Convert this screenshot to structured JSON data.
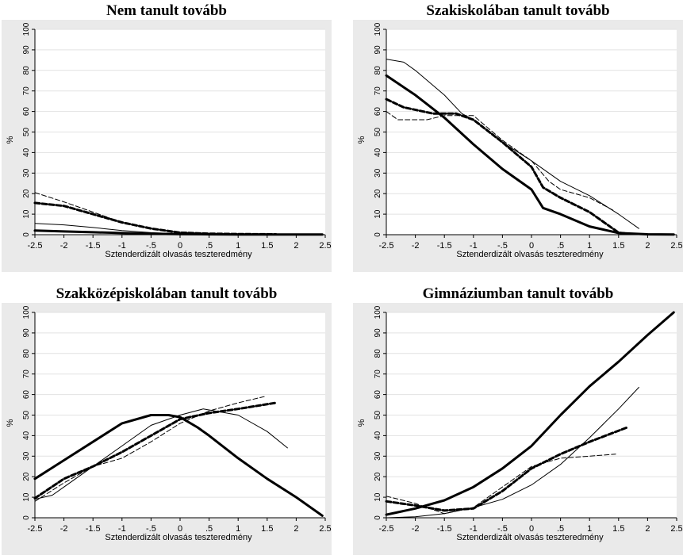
{
  "chart_data": [
    {
      "type": "line",
      "title": "Nem tanult tovább",
      "xlabel": "Sztenderdizált olvasás teszteredmény",
      "ylabel": "%",
      "xlim": [
        -2.5,
        2.5
      ],
      "ylim": [
        0,
        100
      ],
      "xticks": [
        "-2.5",
        "-2",
        "-1.5",
        "-1",
        "-.5",
        "0",
        ".5",
        "1",
        "1.5",
        "2",
        "2.5"
      ],
      "yticks": [
        "0",
        "10",
        "20",
        "30",
        "40",
        "50",
        "60",
        "70",
        "80",
        "90",
        "100"
      ],
      "grid": true,
      "series": [
        {
          "style": "thick-solid",
          "x": [
            -2.5,
            -2,
            -1.5,
            -1,
            -0.5,
            0,
            0.5,
            1,
            1.5,
            2,
            2.45
          ],
          "y": [
            2,
            1.6,
            1.2,
            0.8,
            0.5,
            0.3,
            0.2,
            0.1,
            0.1,
            0.1,
            0.1
          ]
        },
        {
          "style": "thin-solid",
          "x": [
            -2.5,
            -2,
            -1.5,
            -1,
            -0.5,
            0,
            0.3
          ],
          "y": [
            5.5,
            4.8,
            3.5,
            2,
            1,
            0.4,
            0.2
          ]
        },
        {
          "style": "thick-dashed",
          "x": [
            -2.5,
            -2,
            -1.5,
            -1,
            -0.5,
            0,
            0.5,
            1,
            1.65
          ],
          "y": [
            15.5,
            14,
            10,
            6,
            3,
            1,
            0.5,
            0.3,
            0.2
          ]
        },
        {
          "style": "thin-dashed",
          "x": [
            -2.5,
            -2,
            -1.5,
            -1,
            -0.5,
            0,
            0.5,
            1.45
          ],
          "y": [
            20.5,
            16,
            11,
            6,
            3,
            1.2,
            0.5,
            0.2
          ]
        }
      ]
    },
    {
      "type": "line",
      "title": "Szakiskolában tanult tovább",
      "xlabel": "Sztenderdizált olvasás teszteredmény",
      "ylabel": "%",
      "xlim": [
        -2.5,
        2.5
      ],
      "ylim": [
        0,
        100
      ],
      "xticks": [
        "-2.5",
        "-2",
        "-1.5",
        "-1",
        "-.5",
        "0",
        ".5",
        "1",
        "1.5",
        "2",
        "2.5"
      ],
      "yticks": [
        "0",
        "10",
        "20",
        "30",
        "40",
        "50",
        "60",
        "70",
        "80",
        "90",
        "100"
      ],
      "grid": true,
      "series": [
        {
          "style": "thick-solid",
          "x": [
            -2.5,
            -2,
            -1.5,
            -1,
            -0.5,
            0,
            0.2,
            0.5,
            1,
            1.5,
            2,
            2.45
          ],
          "y": [
            77.5,
            68,
            57,
            44,
            32,
            22,
            13,
            10,
            4,
            0.8,
            0.2,
            0.1
          ]
        },
        {
          "style": "thin-solid",
          "x": [
            -2.5,
            -2.2,
            -2,
            -1.5,
            -1.2,
            -1,
            -0.5,
            0,
            0.5,
            1,
            1.5,
            1.85
          ],
          "y": [
            85.5,
            84,
            80,
            68,
            59,
            56,
            45,
            36,
            26,
            19,
            10,
            3
          ]
        },
        {
          "style": "thick-dashed",
          "x": [
            -2.5,
            -2.2,
            -1.7,
            -1.3,
            -1,
            -0.5,
            0,
            0.2,
            0.5,
            1,
            1.5,
            1.65
          ],
          "y": [
            66,
            62,
            59,
            59,
            56,
            45,
            33,
            23,
            18,
            11,
            1,
            0.5
          ]
        },
        {
          "style": "thin-dashed",
          "x": [
            -2.5,
            -2.3,
            -1.8,
            -1.5,
            -1,
            -0.5,
            0,
            0.3,
            0.5,
            1,
            1.4
          ],
          "y": [
            60,
            56,
            56,
            58,
            58,
            46,
            36,
            26,
            22,
            18,
            12
          ]
        }
      ]
    },
    {
      "type": "line",
      "title": "Szakközépiskolában tanult tovább",
      "xlabel": "Sztenderdizált olvasás teszteredmény",
      "ylabel": "%",
      "xlim": [
        -2.5,
        2.5
      ],
      "ylim": [
        0,
        100
      ],
      "xticks": [
        "-2.5",
        "-2",
        "-1.5",
        "-1",
        "-.5",
        "0",
        ".5",
        "1",
        "1.5",
        "2",
        "2.5"
      ],
      "yticks": [
        "0",
        "10",
        "20",
        "30",
        "40",
        "50",
        "60",
        "70",
        "80",
        "90",
        "100"
      ],
      "grid": true,
      "series": [
        {
          "style": "thick-solid",
          "x": [
            -2.5,
            -2,
            -1.5,
            -1,
            -0.5,
            -0.2,
            0,
            0.3,
            0.5,
            1,
            1.5,
            2,
            2.45
          ],
          "y": [
            19,
            28,
            37,
            46,
            50,
            50,
            49,
            44,
            40,
            29,
            19,
            10,
            1
          ]
        },
        {
          "style": "thin-solid",
          "x": [
            -2.5,
            -2.2,
            -2,
            -1.5,
            -1,
            -0.5,
            0,
            0.4,
            1,
            1.5,
            1.85
          ],
          "y": [
            9,
            11,
            15,
            25,
            35,
            45,
            50,
            53,
            50,
            42,
            34
          ]
        },
        {
          "style": "thick-dashed",
          "x": [
            -2.5,
            -2,
            -1.5,
            -1,
            -0.5,
            0,
            0.5,
            1,
            1.65
          ],
          "y": [
            9.5,
            19,
            25,
            32,
            40,
            48,
            51,
            53,
            56
          ]
        },
        {
          "style": "thin-dashed",
          "x": [
            -2.5,
            -2,
            -1.5,
            -1,
            -0.5,
            0,
            0.5,
            1,
            1.45
          ],
          "y": [
            8,
            17,
            25,
            29,
            37,
            46,
            52,
            56,
            59
          ]
        }
      ]
    },
    {
      "type": "line",
      "title": "Gimnáziumban tanult tovább",
      "xlabel": "Sztenderdizált olvasás teszteredmény",
      "ylabel": "%",
      "xlim": [
        -2.5,
        2.5
      ],
      "ylim": [
        0,
        100
      ],
      "xticks": [
        "-2.5",
        "-2",
        "-1.5",
        "-1",
        "-.5",
        "0",
        ".5",
        "1",
        "1.5",
        "2",
        "2.5"
      ],
      "yticks": [
        "0",
        "10",
        "20",
        "30",
        "40",
        "50",
        "60",
        "70",
        "80",
        "90",
        "100"
      ],
      "grid": true,
      "series": [
        {
          "style": "thick-solid",
          "x": [
            -2.5,
            -2,
            -1.5,
            -1,
            -0.5,
            0,
            0.5,
            1,
            1.5,
            2,
            2.45
          ],
          "y": [
            1.5,
            4.5,
            8.5,
            15,
            24,
            35,
            50,
            64,
            76,
            89,
            100
          ]
        },
        {
          "style": "thin-solid",
          "x": [
            -2.5,
            -2,
            -1.5,
            -1,
            -0.5,
            0,
            0.5,
            1,
            1.5,
            1.85
          ],
          "y": [
            0,
            0.5,
            2,
            5,
            9,
            16,
            26,
            39,
            53,
            63.5
          ]
        },
        {
          "style": "thick-dashed",
          "x": [
            -2.5,
            -2,
            -1.5,
            -1,
            -0.5,
            0,
            0.5,
            1,
            1.65
          ],
          "y": [
            8,
            6,
            3.5,
            4.5,
            13,
            24,
            31,
            37,
            44
          ]
        },
        {
          "style": "thin-dashed",
          "x": [
            -2.5,
            -2,
            -1.5,
            -1,
            -0.5,
            0,
            0.5,
            1,
            1.45
          ],
          "y": [
            10.5,
            7,
            2,
            5,
            15,
            25,
            29,
            30,
            31
          ]
        }
      ]
    }
  ]
}
